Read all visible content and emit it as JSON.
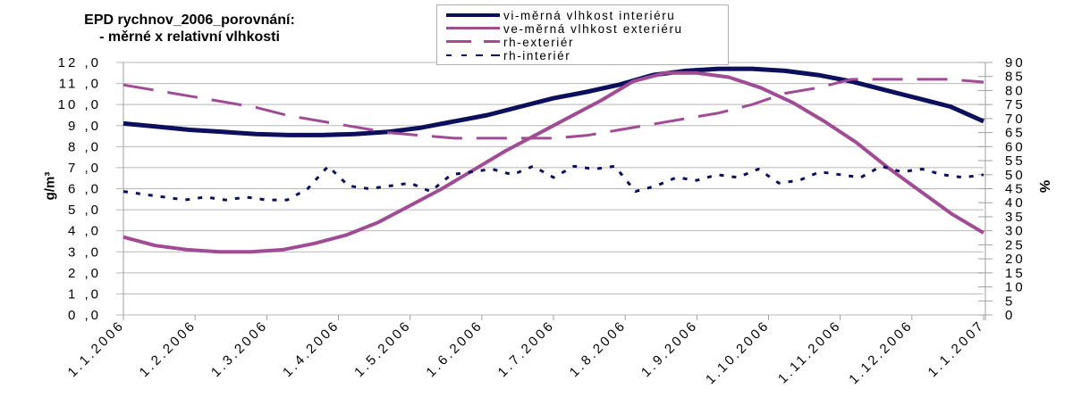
{
  "chart_data": {
    "type": "line",
    "title": "EPD rychnov_2006_porovnání:",
    "subtitle": "- měrné x relativní vlhkosti",
    "ylabel": "g/m³",
    "y2label": "%",
    "ylim": [
      0,
      12
    ],
    "y2lim": [
      0,
      90
    ],
    "yticks": [
      "0,0",
      "1,0",
      "2,0",
      "3,0",
      "4,0",
      "5,0",
      "6,0",
      "7,0",
      "8,0",
      "9,0",
      "10,0",
      "11,0",
      "12,0"
    ],
    "y2ticks": [
      "0",
      "5",
      "10",
      "15",
      "20",
      "25",
      "30",
      "35",
      "40",
      "45",
      "50",
      "55",
      "60",
      "65",
      "70",
      "75",
      "80",
      "85",
      "90"
    ],
    "xticks": [
      "1.1.2006",
      "1.2.2006",
      "1.3.2006",
      "1.4.2006",
      "1.5.2006",
      "1.6.2006",
      "1.7.2006",
      "1.8.2006",
      "1.9.2006",
      "1.10.2006",
      "1.11.2006",
      "1.12.2006",
      "1.1.2007"
    ],
    "grid": true,
    "legend_position": "top-center",
    "x_months": [
      0,
      0.5,
      1,
      1.5,
      2,
      2.5,
      3,
      3.5,
      4,
      4.5,
      5,
      5.5,
      6,
      6.5,
      7,
      7.5,
      8,
      8.5,
      9,
      9.5,
      10,
      10.5,
      11,
      11.5,
      12
    ],
    "series": [
      {
        "name": "vi-měrná vlhkost interiéru",
        "axis": "left",
        "color": "#0b0f5c",
        "style": "solid-thick",
        "values": [
          9.1,
          8.95,
          8.8,
          8.7,
          8.6,
          8.55,
          8.55,
          8.6,
          8.7,
          8.9,
          9.2,
          9.5,
          9.9,
          10.3,
          10.6,
          10.95,
          11.4,
          11.6,
          11.7,
          11.7,
          11.6,
          11.4,
          11.1,
          10.7,
          10.3,
          9.9,
          9.2
        ]
      },
      {
        "name": "ve-měrná vlhkost exteriéru",
        "axis": "left",
        "color": "#a04c94",
        "style": "solid",
        "values": [
          3.7,
          3.3,
          3.1,
          3.0,
          3.0,
          3.1,
          3.4,
          3.8,
          4.4,
          5.2,
          6.0,
          6.9,
          7.8,
          8.6,
          9.4,
          10.2,
          11.1,
          11.5,
          11.5,
          11.3,
          10.8,
          10.1,
          9.2,
          8.2,
          7.0,
          5.9,
          4.8,
          3.9
        ]
      },
      {
        "name": "rh-exteriér",
        "axis": "right",
        "color": "#a04c94",
        "style": "long-dash",
        "values": [
          82,
          80,
          78,
          76,
          74,
          71,
          69,
          67,
          65,
          64,
          63,
          63,
          63,
          63,
          64,
          66,
          68,
          70,
          72,
          75,
          79,
          81,
          84,
          84,
          84,
          84,
          83
        ]
      },
      {
        "name": "rh-interiér",
        "axis": "right",
        "color": "#0b0f5c",
        "style": "short-dash",
        "values": [
          44,
          43,
          42,
          41,
          42,
          41,
          42,
          41,
          41,
          45,
          53,
          46,
          45,
          46,
          47,
          44,
          50,
          51,
          52,
          50,
          53,
          49,
          53,
          52,
          53,
          44,
          46,
          49,
          48,
          50,
          49,
          52,
          47,
          48,
          51,
          50,
          49,
          53,
          51,
          52,
          50,
          49,
          50
        ]
      }
    ]
  },
  "legend": {
    "items": [
      {
        "label": "vi-měrná vlhkost interiéru"
      },
      {
        "label": "ve-měrná vlhkost exteriéru"
      },
      {
        "label": "rh-exteriér"
      },
      {
        "label": "rh-interiér"
      }
    ]
  }
}
